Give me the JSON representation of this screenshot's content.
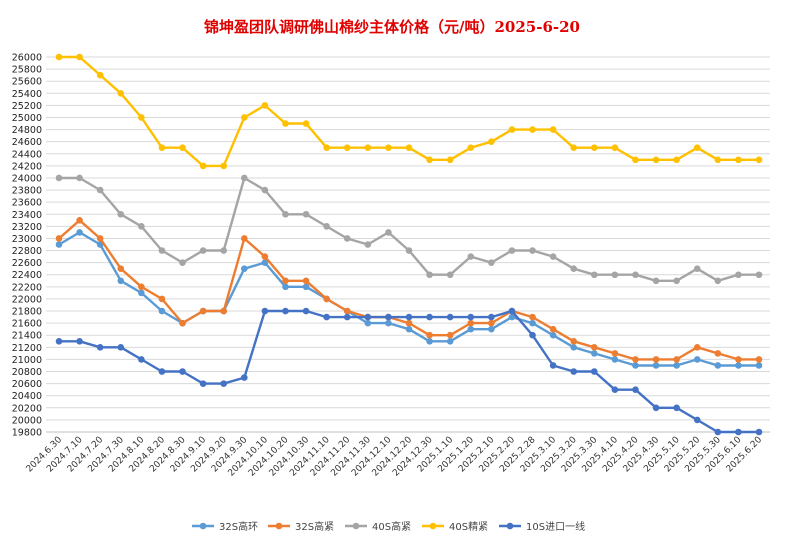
{
  "chart_data": {
    "type": "line",
    "title": "锦坤盈团队调研佛山棉纱主体价格（元/吨）2025-6-20",
    "categories": [
      "2024.6.30",
      "2024.7.10",
      "2024.7.20",
      "2024.7.30",
      "2024.8.10",
      "2024.8.20",
      "2024.8.30",
      "2024.9.10",
      "2024.9.20",
      "2024.9.30",
      "2024.10.10",
      "2024.10.20",
      "2024.10.30",
      "2024.11.10",
      "2024.11.20",
      "2024.11.30",
      "2024.12.10",
      "2024.12.20",
      "2024.12.30",
      "2025.1.10",
      "2025.1.20",
      "2025.2.10",
      "2025.2.20",
      "2025.2.28",
      "2025.3.10",
      "2025.3.20",
      "2025.3.30",
      "2025.4.10",
      "2025.4.20",
      "2025.4.30",
      "2025.5.10",
      "2025.5.20",
      "2025.5.30",
      "2025.6.10",
      "2025.6.20"
    ],
    "ylim": [
      19800,
      26000
    ],
    "ystep": 200,
    "grid": true,
    "legend": "bottom",
    "series": [
      {
        "name": "32S高环",
        "color": "#5b9bd5",
        "values": [
          22900,
          23100,
          22900,
          22300,
          22100,
          21800,
          21600,
          21800,
          21800,
          22500,
          22600,
          22200,
          22200,
          22000,
          21800,
          21600,
          21600,
          21500,
          21300,
          21300,
          21500,
          21500,
          21700,
          21600,
          21400,
          21200,
          21100,
          21000,
          20900,
          20900,
          20900,
          21000,
          20900,
          20900,
          20900
        ]
      },
      {
        "name": "32S高紧",
        "color": "#ed7d31",
        "values": [
          23000,
          23300,
          23000,
          22500,
          22200,
          22000,
          21600,
          21800,
          21800,
          23000,
          22700,
          22300,
          22300,
          22000,
          21800,
          21700,
          21700,
          21600,
          21400,
          21400,
          21600,
          21600,
          21800,
          21700,
          21500,
          21300,
          21200,
          21100,
          21000,
          21000,
          21000,
          21200,
          21100,
          21000,
          21000
        ]
      },
      {
        "name": "40S高紧",
        "color": "#a5a5a5",
        "values": [
          24000,
          24000,
          23800,
          23400,
          23200,
          22800,
          22600,
          22800,
          22800,
          24000,
          23800,
          23400,
          23400,
          23200,
          23000,
          22900,
          23100,
          22800,
          22400,
          22400,
          22700,
          22600,
          22800,
          22800,
          22700,
          22500,
          22400,
          22400,
          22400,
          22300,
          22300,
          22500,
          22300,
          22400,
          22400
        ]
      },
      {
        "name": "40S精紧",
        "color": "#ffc000",
        "values": [
          26000,
          26000,
          25700,
          25400,
          25000,
          24500,
          24500,
          24200,
          24200,
          25000,
          25200,
          24900,
          24900,
          24500,
          24500,
          24500,
          24500,
          24500,
          24300,
          24300,
          24500,
          24600,
          24800,
          24800,
          24800,
          24500,
          24500,
          24500,
          24300,
          24300,
          24300,
          24500,
          24300,
          24300,
          24300
        ]
      },
      {
        "name": "10S进口一线",
        "color": "#4472c4",
        "values": [
          21300,
          21300,
          21200,
          21200,
          21000,
          20800,
          20800,
          20600,
          20600,
          20700,
          21800,
          21800,
          21800,
          21700,
          21700,
          21700,
          21700,
          21700,
          21700,
          21700,
          21700,
          21700,
          21800,
          21400,
          20900,
          20800,
          20800,
          20500,
          20500,
          20200,
          20200,
          20000,
          19800,
          19800,
          19800
        ]
      }
    ]
  }
}
